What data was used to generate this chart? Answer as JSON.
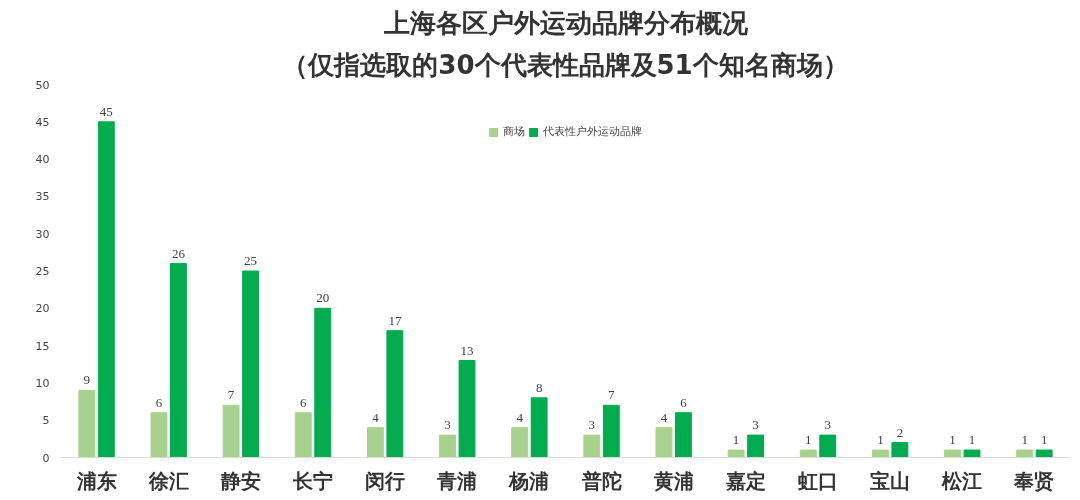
{
  "chart_data": {
    "type": "bar",
    "title": "上海各区户外运动品牌分布概况",
    "subtitle": "（仅指选取的30个代表性品牌及51个知名商场）",
    "categories": [
      "浦东",
      "徐汇",
      "静安",
      "长宁",
      "闵行",
      "青浦",
      "杨浦",
      "普陀",
      "黄浦",
      "嘉定",
      "虹口",
      "宝山",
      "松江",
      "奉贤"
    ],
    "series": [
      {
        "name": "商场",
        "color": "#a9d18e",
        "values": [
          9,
          6,
          7,
          6,
          4,
          3,
          4,
          3,
          4,
          1,
          1,
          1,
          1,
          1
        ]
      },
      {
        "name": "代表性户外运动品牌",
        "color": "#00ac4e",
        "values": [
          45,
          26,
          25,
          20,
          17,
          13,
          8,
          7,
          6,
          3,
          3,
          2,
          1,
          1
        ]
      }
    ],
    "ylim": [
      0,
      50
    ],
    "yticks": [
      0,
      5,
      10,
      15,
      20,
      25,
      30,
      35,
      40,
      45,
      50
    ],
    "grid": false,
    "legend": "top",
    "data_labels": true
  }
}
